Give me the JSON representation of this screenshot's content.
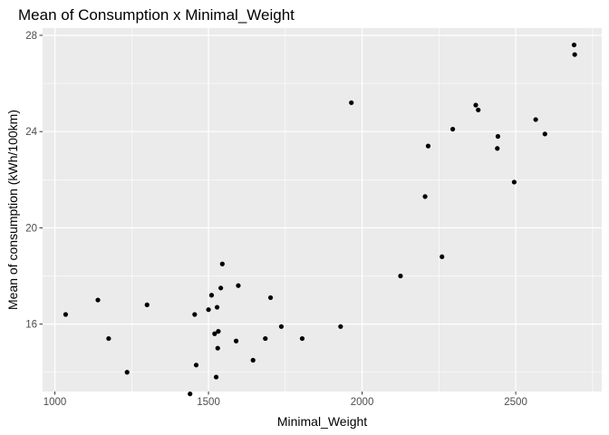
{
  "chart_data": {
    "type": "scatter",
    "title": "Mean of Consumption x Minimal_Weight",
    "xlabel": "Minimal_Weight",
    "ylabel": "Mean of consumption (kWh/100km)",
    "xlim": [
      960,
      2780
    ],
    "ylim": [
      13.2,
      28.3
    ],
    "xticks": [
      1000,
      1500,
      2000,
      2500
    ],
    "yticks": [
      16,
      20,
      24,
      28
    ],
    "xtick_labels": [
      "1000",
      "1500",
      "2000",
      "2500"
    ],
    "ytick_labels": [
      "16",
      "20",
      "24",
      "28"
    ],
    "grid": true,
    "panel_color": "#EBEBEB",
    "grid_color": "#FFFFFF",
    "point_color": "#000000",
    "points": [
      {
        "x": 1035,
        "y": 16.4
      },
      {
        "x": 1140,
        "y": 17.0
      },
      {
        "x": 1175,
        "y": 15.4
      },
      {
        "x": 1235,
        "y": 14.0
      },
      {
        "x": 1300,
        "y": 16.8
      },
      {
        "x": 1440,
        "y": 13.1
      },
      {
        "x": 1455,
        "y": 16.4
      },
      {
        "x": 1460,
        "y": 14.3
      },
      {
        "x": 1500,
        "y": 16.6
      },
      {
        "x": 1510,
        "y": 17.2
      },
      {
        "x": 1520,
        "y": 15.6
      },
      {
        "x": 1525,
        "y": 13.8
      },
      {
        "x": 1528,
        "y": 16.7
      },
      {
        "x": 1530,
        "y": 15.0
      },
      {
        "x": 1532,
        "y": 15.7
      },
      {
        "x": 1540,
        "y": 17.5
      },
      {
        "x": 1545,
        "y": 18.5
      },
      {
        "x": 1590,
        "y": 15.3
      },
      {
        "x": 1597,
        "y": 17.6
      },
      {
        "x": 1645,
        "y": 14.5
      },
      {
        "x": 1685,
        "y": 15.4
      },
      {
        "x": 1702,
        "y": 17.1
      },
      {
        "x": 1737,
        "y": 15.9
      },
      {
        "x": 1805,
        "y": 15.4
      },
      {
        "x": 1930,
        "y": 15.9
      },
      {
        "x": 1965,
        "y": 25.2
      },
      {
        "x": 2125,
        "y": 18.0
      },
      {
        "x": 2205,
        "y": 21.3
      },
      {
        "x": 2215,
        "y": 23.4
      },
      {
        "x": 2260,
        "y": 18.8
      },
      {
        "x": 2295,
        "y": 24.1
      },
      {
        "x": 2370,
        "y": 25.1
      },
      {
        "x": 2378,
        "y": 24.9
      },
      {
        "x": 2440,
        "y": 23.3
      },
      {
        "x": 2442,
        "y": 23.8
      },
      {
        "x": 2495,
        "y": 21.9
      },
      {
        "x": 2565,
        "y": 24.5
      },
      {
        "x": 2595,
        "y": 23.9
      },
      {
        "x": 2690,
        "y": 27.6
      },
      {
        "x": 2692,
        "y": 27.2
      }
    ]
  }
}
